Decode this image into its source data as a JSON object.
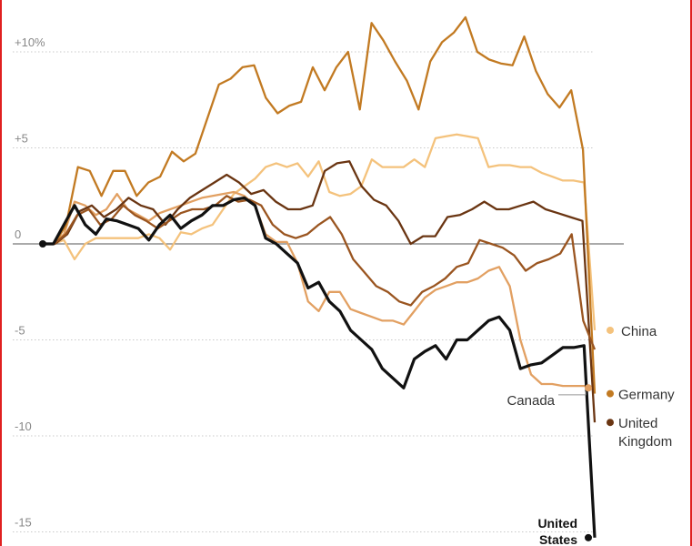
{
  "chart_data": {
    "type": "line",
    "title": "",
    "xlabel": "",
    "ylabel": "",
    "ylim": [
      -15.5,
      12.5
    ],
    "y_ticks": [
      {
        "value": 10,
        "label": "+10%"
      },
      {
        "value": 5,
        "label": "+5"
      },
      {
        "value": 0,
        "label": "0"
      },
      {
        "value": -5,
        "label": "-5"
      },
      {
        "value": -10,
        "label": "-10"
      },
      {
        "value": -15,
        "label": "-15"
      }
    ],
    "series": [
      {
        "key": "china",
        "name": "China",
        "label_lines": [
          "China"
        ],
        "color": "#f4c27c",
        "end_value": -4.5,
        "label_value": -4.5,
        "values": [
          0,
          0,
          0.2,
          -0.8,
          0,
          0.3,
          0.3,
          0.3,
          0.3,
          0.3,
          0.5,
          0.3,
          -0.3,
          0.6,
          0.5,
          0.8,
          1,
          1.8,
          2.6,
          3,
          3.4,
          4,
          4.2,
          4,
          4.2,
          3.5,
          4.3,
          2.7,
          2.5,
          2.6,
          3,
          4.4,
          4,
          4,
          4,
          4.4,
          4,
          5.5,
          5.6,
          5.7,
          5.6,
          5.5,
          4,
          4.1,
          4.1,
          4,
          4,
          3.7,
          3.5,
          3.3,
          3.3,
          3.2,
          -4.5
        ]
      },
      {
        "key": "us",
        "name": "United States",
        "label_lines": [
          "United",
          "States"
        ],
        "color": "#111111",
        "end_value": -15.3,
        "label_value": -15.3,
        "values": [
          0,
          0,
          1,
          2,
          1,
          0.5,
          1.3,
          1.2,
          1,
          0.8,
          0.2,
          1,
          1.5,
          0.8,
          1.2,
          1.5,
          2,
          2,
          2.3,
          2.4,
          2,
          0.3,
          0,
          -0.5,
          -1,
          -2.3,
          -2,
          -3,
          -3.5,
          -4.5,
          -5,
          -5.5,
          -6.5,
          -7,
          -7.5,
          -6,
          -5.6,
          -5.3,
          -6,
          -5,
          -5,
          -4.5,
          -4,
          -3.8,
          -4.5,
          -6.5,
          -6.3,
          -6.2,
          -5.8,
          -5.4,
          -5.4,
          -5.3,
          -15.3
        ]
      },
      {
        "key": "canada",
        "name": "Canada",
        "label_lines": [
          "Canada"
        ],
        "color": "#e2a062",
        "end_value": -7.5,
        "label_value": -8.1,
        "values": [
          0,
          0,
          0.5,
          2.2,
          2,
          1.5,
          1.8,
          2.6,
          1.8,
          1.5,
          1.2,
          1.6,
          1.8,
          2,
          2.2,
          2.4,
          2.5,
          2.6,
          2.7,
          2.5,
          2,
          0.5,
          0.1,
          0.1,
          -1,
          -3,
          -3.5,
          -2.5,
          -2.5,
          -3.4,
          -3.6,
          -3.8,
          -4,
          -4,
          -4.2,
          -3.5,
          -2.8,
          -2.4,
          -2.2,
          -2,
          -2,
          -1.8,
          -1.4,
          -1.2,
          -2.2,
          -5,
          -6.8,
          -7.3,
          -7.3,
          -7.4,
          -7.4,
          -7.4,
          -7.5
        ]
      },
      {
        "key": "germany",
        "name": "Germany",
        "label_lines": [
          "Germany"
        ],
        "color": "#c27a22",
        "end_value": -7.8,
        "label_value": -7.8,
        "values": [
          0,
          0,
          1,
          4,
          3.8,
          2.5,
          3.8,
          3.8,
          2.5,
          3.2,
          3.5,
          4.8,
          4.3,
          4.7,
          6.5,
          8.3,
          8.6,
          9.2,
          9.3,
          7.6,
          6.8,
          7.2,
          7.4,
          9.2,
          8,
          9.2,
          10,
          7,
          11.5,
          10.6,
          9.5,
          8.5,
          7,
          9.5,
          10.5,
          11,
          11.8,
          10,
          9.6,
          9.4,
          9.3,
          10.8,
          9,
          7.8,
          7.1,
          8,
          4.9,
          -7.8
        ]
      },
      {
        "key": "uk",
        "name": "United Kingdom",
        "label_lines": [
          "United",
          "Kingdom"
        ],
        "color": "#6a3512",
        "end_value": -9.3,
        "label_value": -9.3,
        "values": [
          0,
          0,
          0.5,
          1.7,
          2,
          1.4,
          1.8,
          2.4,
          2,
          1.8,
          1,
          1.8,
          2.4,
          2.8,
          3.2,
          3.6,
          3.2,
          2.6,
          2.8,
          2.2,
          1.8,
          1.8,
          2,
          3.8,
          4.2,
          4.3,
          3,
          2.3,
          2,
          1.2,
          0,
          0.4,
          0.4,
          1.4,
          1.5,
          1.8,
          2.2,
          1.8,
          1.8,
          2,
          2.2,
          1.8,
          1.6,
          1.4,
          1.2,
          -9.3
        ]
      },
      {
        "key": "other",
        "name": "",
        "label_lines": [],
        "color": "#9a5520",
        "end_value": null,
        "label_value": null,
        "values": [
          0,
          0,
          0.5,
          1.5,
          1.8,
          1,
          1.3,
          2,
          1.5,
          1.2,
          0.8,
          1.2,
          1.6,
          1.8,
          1.8,
          2,
          2.5,
          2.2,
          2.3,
          2,
          1,
          0.5,
          0.3,
          0.5,
          1,
          1.4,
          0.5,
          -0.8,
          -1.5,
          -2.2,
          -2.5,
          -3,
          -3.2,
          -2.5,
          -2.2,
          -1.8,
          -1.2,
          -1,
          0.2,
          0,
          -0.2,
          -0.6,
          -1.4,
          -1,
          -0.8,
          -0.5,
          0.5,
          -4,
          -5.5
        ]
      }
    ]
  }
}
